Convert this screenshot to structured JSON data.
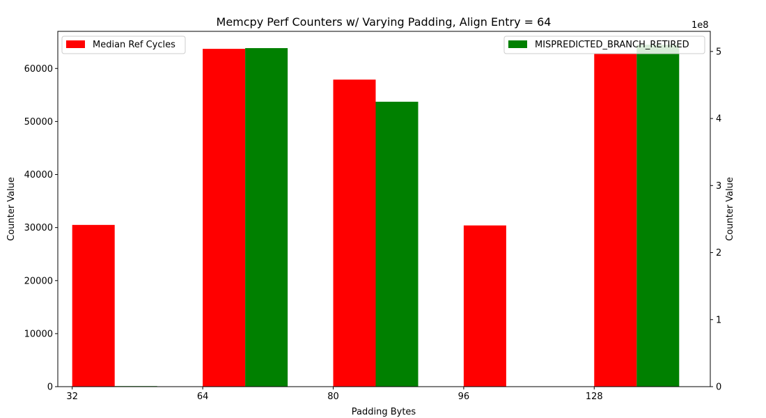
{
  "chart_data": {
    "type": "bar",
    "title": "Memcpy Perf Counters w/ Varying Padding, Align Entry = 64",
    "xlabel": "Padding Bytes",
    "ylabel_left": "Counter Value",
    "ylabel_right": "Counter Value",
    "right_axis_multiplier": "1e8",
    "categories": [
      "32",
      "64",
      "80",
      "96",
      "128"
    ],
    "ylim_left": [
      0,
      67000
    ],
    "ylim_right": [
      0,
      530000000
    ],
    "yticks_left": [
      0,
      10000,
      20000,
      30000,
      40000,
      50000,
      60000
    ],
    "yticks_right": [
      0,
      100000000,
      200000000,
      300000000,
      400000000,
      500000000
    ],
    "ytick_labels_left": [
      "0",
      "10000",
      "20000",
      "30000",
      "40000",
      "50000",
      "60000"
    ],
    "ytick_labels_right": [
      "0",
      "1",
      "2",
      "3",
      "4",
      "5"
    ],
    "grid": false,
    "series": [
      {
        "name": "Median Ref Cycles",
        "axis": "left",
        "color": "#ff0000",
        "values": [
          30500,
          63700,
          57900,
          30400,
          62800
        ],
        "legend_position": "top-left"
      },
      {
        "name": "MISPREDICTED_BRANCH_RETIRED",
        "axis": "right",
        "color": "#008000",
        "values": [
          800000,
          505000000,
          425000000,
          0,
          510000000
        ],
        "legend_position": "top-right"
      }
    ]
  }
}
